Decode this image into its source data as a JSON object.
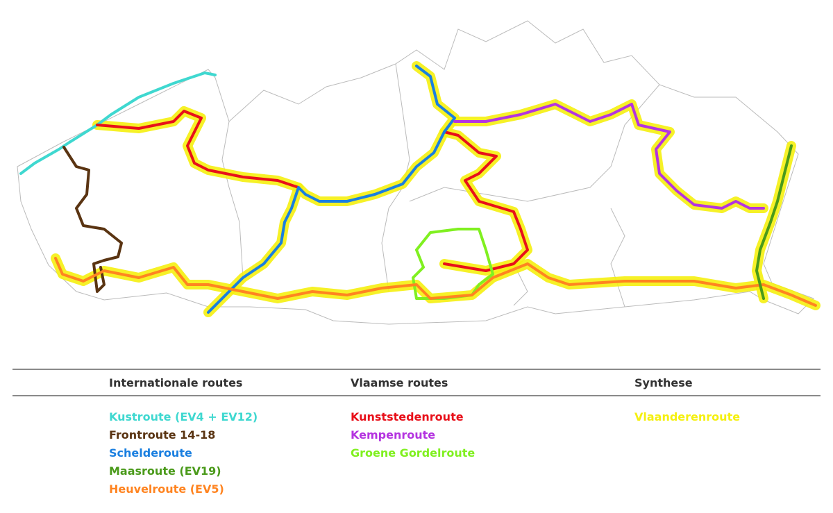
{
  "legend": {
    "groups": [
      {
        "title": "Internationale routes",
        "items": [
          {
            "label": "Kustroute (EV4 + EV12)",
            "color": "#3fd8d0"
          },
          {
            "label": "Frontroute 14-18",
            "color": "#5a3412"
          },
          {
            "label": "Schelderoute",
            "color": "#1a7fe0"
          },
          {
            "label": "Maasroute (EV19)",
            "color": "#4a9a1a"
          },
          {
            "label": "Heuvelroute (EV5)",
            "color": "#ff8420"
          }
        ]
      },
      {
        "title": "Vlaamse routes",
        "items": [
          {
            "label": "Kunststedenroute",
            "color": "#e8101a"
          },
          {
            "label": "Kempenroute",
            "color": "#b434e0"
          },
          {
            "label": "Groene Gordelroute",
            "color": "#80f020"
          }
        ]
      },
      {
        "title": "Synthese",
        "items": [
          {
            "label": "Vlaanderenroute",
            "color": "#f5f010"
          }
        ]
      }
    ]
  },
  "map": {
    "border_color": "#bbbbbb",
    "halo_color": "#f5f010"
  }
}
